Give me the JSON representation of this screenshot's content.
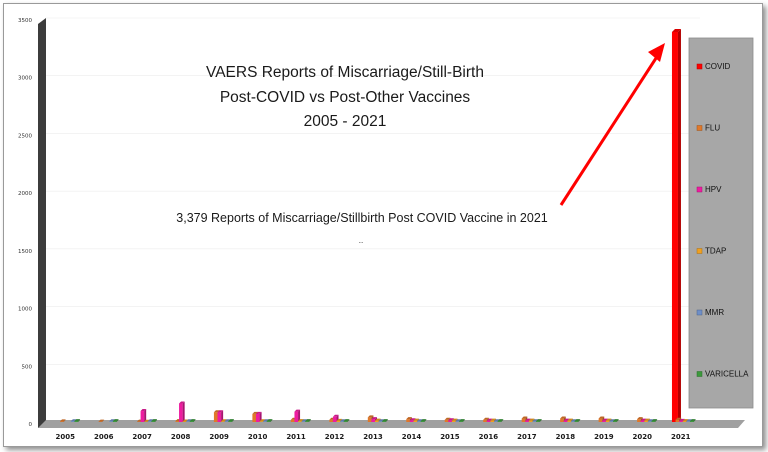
{
  "chart_data": {
    "type": "bar",
    "title_lines": [
      "VAERS Reports of Miscarriage/Still-Birth",
      "Post-COVID vs Post-Other Vaccines",
      "2005 - 2021"
    ],
    "annotation": "3,379 Reports of Miscarriage/Stillbirth Post COVID Vaccine in 2021",
    "annotation_sub": "..",
    "categories": [
      "2005",
      "2006",
      "2007",
      "2008",
      "2009",
      "2010",
      "2011",
      "2012",
      "2013",
      "2014",
      "2015",
      "2016",
      "2017",
      "2018",
      "2019",
      "2020",
      "2021"
    ],
    "ylim": [
      0,
      3500
    ],
    "yticks": [
      0,
      500,
      1000,
      1500,
      2000,
      2500,
      3000,
      3500
    ],
    "legend_position": "right",
    "series": [
      {
        "name": "COVID",
        "color": "#ff0000",
        "values": [
          0,
          0,
          0,
          0,
          0,
          0,
          0,
          0,
          0,
          0,
          0,
          0,
          0,
          0,
          0,
          0,
          3379
        ]
      },
      {
        "name": "FLU",
        "color": "#e0782a",
        "values": [
          5,
          3,
          3,
          8,
          85,
          70,
          20,
          20,
          40,
          25,
          20,
          20,
          30,
          30,
          30,
          25,
          20
        ]
      },
      {
        "name": "HPV",
        "color": "#ee1ca0",
        "values": [
          0,
          0,
          95,
          160,
          85,
          70,
          90,
          45,
          25,
          15,
          15,
          12,
          12,
          12,
          12,
          12,
          10
        ]
      },
      {
        "name": "TDAP",
        "color": "#f0a020",
        "values": [
          0,
          0,
          2,
          4,
          6,
          6,
          8,
          10,
          12,
          12,
          12,
          12,
          12,
          12,
          12,
          12,
          8
        ]
      },
      {
        "name": "MMR",
        "color": "#6f8fc8",
        "values": [
          6,
          6,
          6,
          6,
          6,
          6,
          6,
          6,
          6,
          6,
          6,
          6,
          6,
          6,
          6,
          6,
          6
        ]
      },
      {
        "name": "VARICELLA",
        "color": "#3c9a3c",
        "values": [
          8,
          8,
          8,
          8,
          8,
          8,
          8,
          8,
          8,
          8,
          8,
          8,
          8,
          8,
          8,
          8,
          8
        ]
      }
    ]
  }
}
